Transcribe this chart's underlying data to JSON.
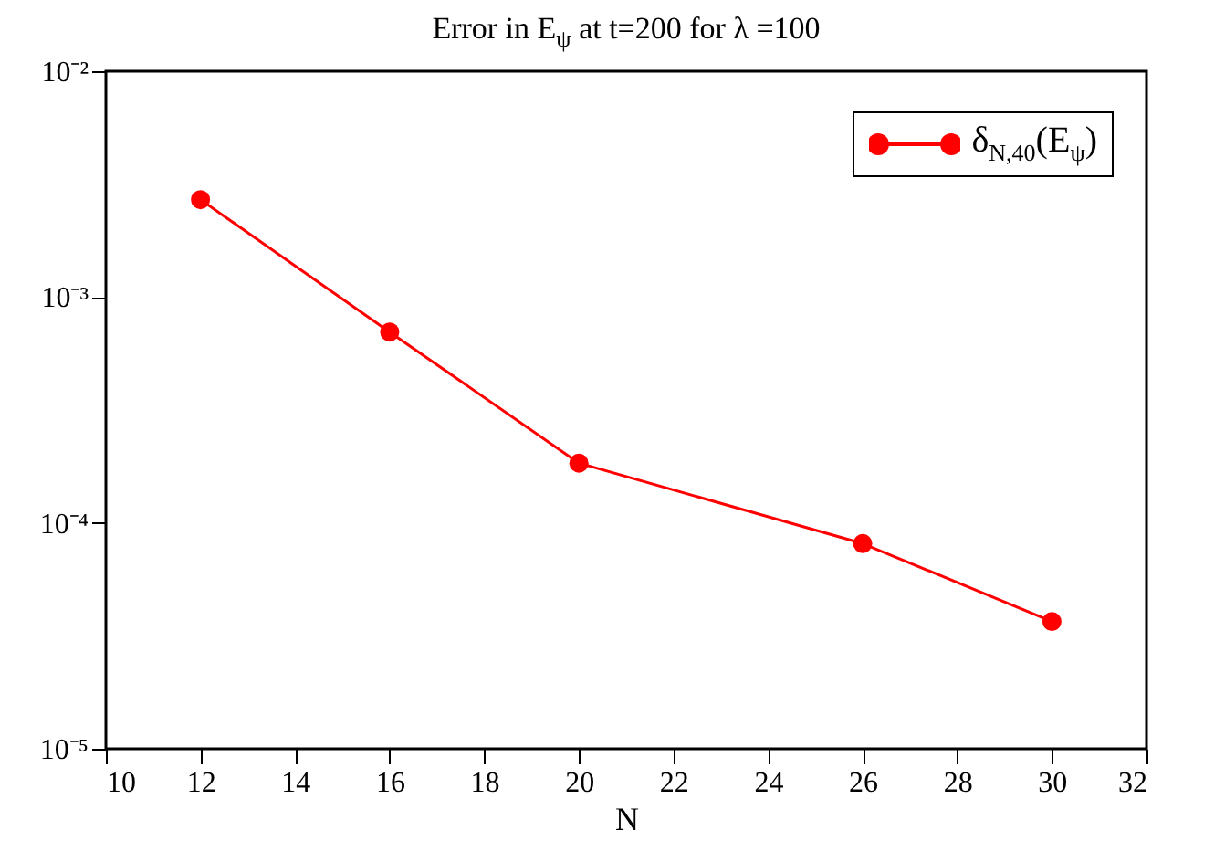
{
  "chart_data": {
    "type": "line",
    "title": "Error in E$_{ψ}$ at t=200 for λ =100",
    "xlabel": "N",
    "x": [
      12,
      16,
      20,
      26,
      30
    ],
    "series": [
      {
        "name": "δ$_{N,40}$(E$_{ψ}$)",
        "color": "#ff0000",
        "values": [
          0.0027,
          0.0007,
          0.000184,
          8.1e-05,
          3.66e-05
        ]
      }
    ],
    "log": "y",
    "xlim": [
      10,
      32
    ],
    "xticks": [
      10,
      12,
      14,
      16,
      18,
      20,
      22,
      24,
      26,
      28,
      30,
      32
    ],
    "ylim": [
      1e-05,
      0.01
    ],
    "yticks": [
      {
        "value": 1e-05,
        "label": "10⁻⁵"
      },
      {
        "value": 0.0001,
        "label": "10⁻⁴"
      },
      {
        "value": 0.001,
        "label": "10⁻³"
      },
      {
        "value": 0.01,
        "label": "10⁻²"
      }
    ],
    "grid": false,
    "legend": "top right",
    "marker": "circle",
    "line_style": "solid"
  }
}
